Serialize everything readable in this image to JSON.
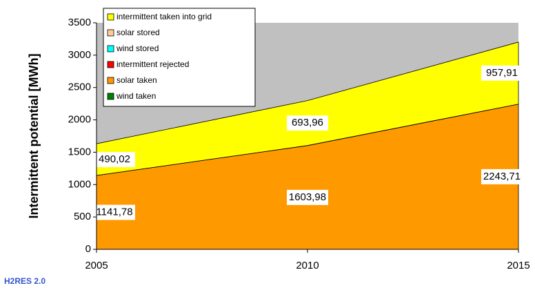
{
  "chart_data": {
    "type": "stacked-area",
    "ylabel": "Intermittent potential [MWh]",
    "logo": "H2RES 2.0",
    "x": [
      2005,
      2010,
      2015
    ],
    "xlim": [
      2005,
      2015
    ],
    "xticks": [
      2005,
      2010,
      2015
    ],
    "ylim": [
      0,
      3500
    ],
    "yticks": [
      0,
      500,
      1000,
      1500,
      2000,
      2500,
      3000,
      3500
    ],
    "background": "#c0c0c0",
    "legend": "top-left",
    "series": [
      {
        "name": "intermittent taken into grid",
        "color": "#ffff00",
        "values": [
          490.02,
          693.96,
          957.91
        ],
        "value_labels": [
          "490,02",
          "693,96",
          "957,91"
        ]
      },
      {
        "name": "solar stored",
        "color": "#ffcc99",
        "values": [
          0,
          0,
          0
        ]
      },
      {
        "name": "wind stored",
        "color": "#00ffff",
        "values": [
          0,
          0,
          0
        ]
      },
      {
        "name": "intermittent rejected",
        "color": "#ff0000",
        "values": [
          0,
          0,
          0
        ]
      },
      {
        "name": "solar taken",
        "color": "#ff9900",
        "values": [
          1141.78,
          1603.98,
          2243.71
        ],
        "value_labels": [
          "1141,78",
          "1603,98",
          "2243,71"
        ]
      },
      {
        "name": "wind taken",
        "color": "#008000",
        "values": [
          0,
          0,
          0
        ]
      }
    ]
  }
}
